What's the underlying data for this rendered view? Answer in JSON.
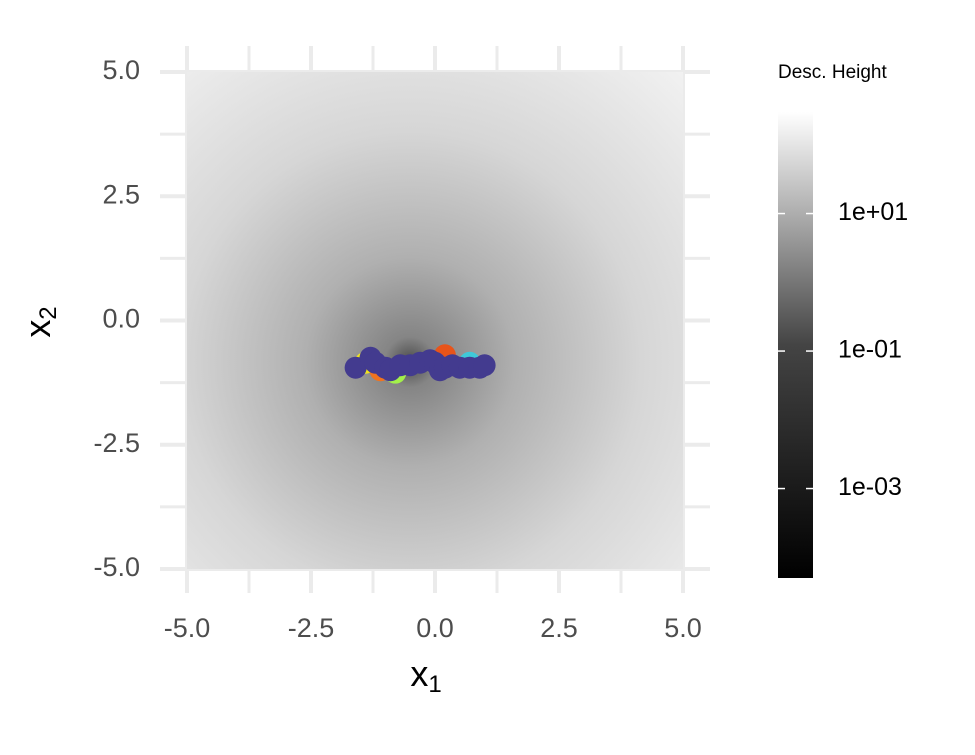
{
  "chart_data": {
    "type": "scatter",
    "xlabel": "x",
    "xlabel_sub": "1",
    "ylabel": "x",
    "ylabel_sub": "2",
    "xlim": [
      -5,
      5
    ],
    "ylim": [
      -5,
      5
    ],
    "xticks": [
      {
        "value": -5,
        "label": "-5.0"
      },
      -2.5,
      {
        "value": 0,
        "label": "0.0"
      },
      2.5,
      {
        "value": 5,
        "label": "5.0"
      }
    ],
    "yticks": [
      {
        "value": -5,
        "label": "-5.0"
      },
      -2.5,
      {
        "value": 0,
        "label": "0.0"
      },
      2.5,
      {
        "value": 5,
        "label": "5.0"
      }
    ],
    "xminor": [
      -3.75,
      -1.25,
      1.25,
      3.75
    ],
    "yminor": [
      -3.75,
      -1.25,
      1.25,
      3.75
    ],
    "grid": true,
    "points": {
      "x": [
        -1.4,
        -1.1,
        -0.8,
        0.2,
        0.7,
        -1.6,
        -1.3,
        -1.2,
        -1.0,
        -0.9,
        -0.7,
        -0.5,
        -0.3,
        -0.1,
        0.0,
        0.1,
        0.2,
        0.35,
        0.5,
        0.7,
        0.9,
        1.0
      ],
      "y": [
        -0.85,
        -1.0,
        -1.05,
        -0.7,
        -0.85,
        -0.95,
        -0.75,
        -0.85,
        -0.95,
        -1.0,
        -0.9,
        -0.9,
        -0.85,
        -0.8,
        -0.85,
        -1.0,
        -0.95,
        -0.9,
        -0.95,
        -0.95,
        -0.95,
        -0.9
      ],
      "colors": [
        "#f1e51d",
        "#f0731e",
        "#a3f04a",
        "#e8541a",
        "#3fc9d9",
        "#433b8f",
        "#433b8f",
        "#433b8f",
        "#433b8f",
        "#433b8f",
        "#433b8f",
        "#433b8f",
        "#433b8f",
        "#433b8f",
        "#433b8f",
        "#433b8f",
        "#433b8f",
        "#433b8f",
        "#433b8f",
        "#433b8f",
        "#433b8f",
        "#433b8f"
      ]
    },
    "colorbar": {
      "title": "Desc. Height",
      "log": true,
      "lim": [
        5e-05,
        300
      ],
      "ticks": [
        {
          "value": 10,
          "label": "1e+01"
        },
        {
          "value": 0.1,
          "label": "1e-01"
        },
        {
          "value": 0.001,
          "label": "1e-03"
        }
      ]
    }
  }
}
